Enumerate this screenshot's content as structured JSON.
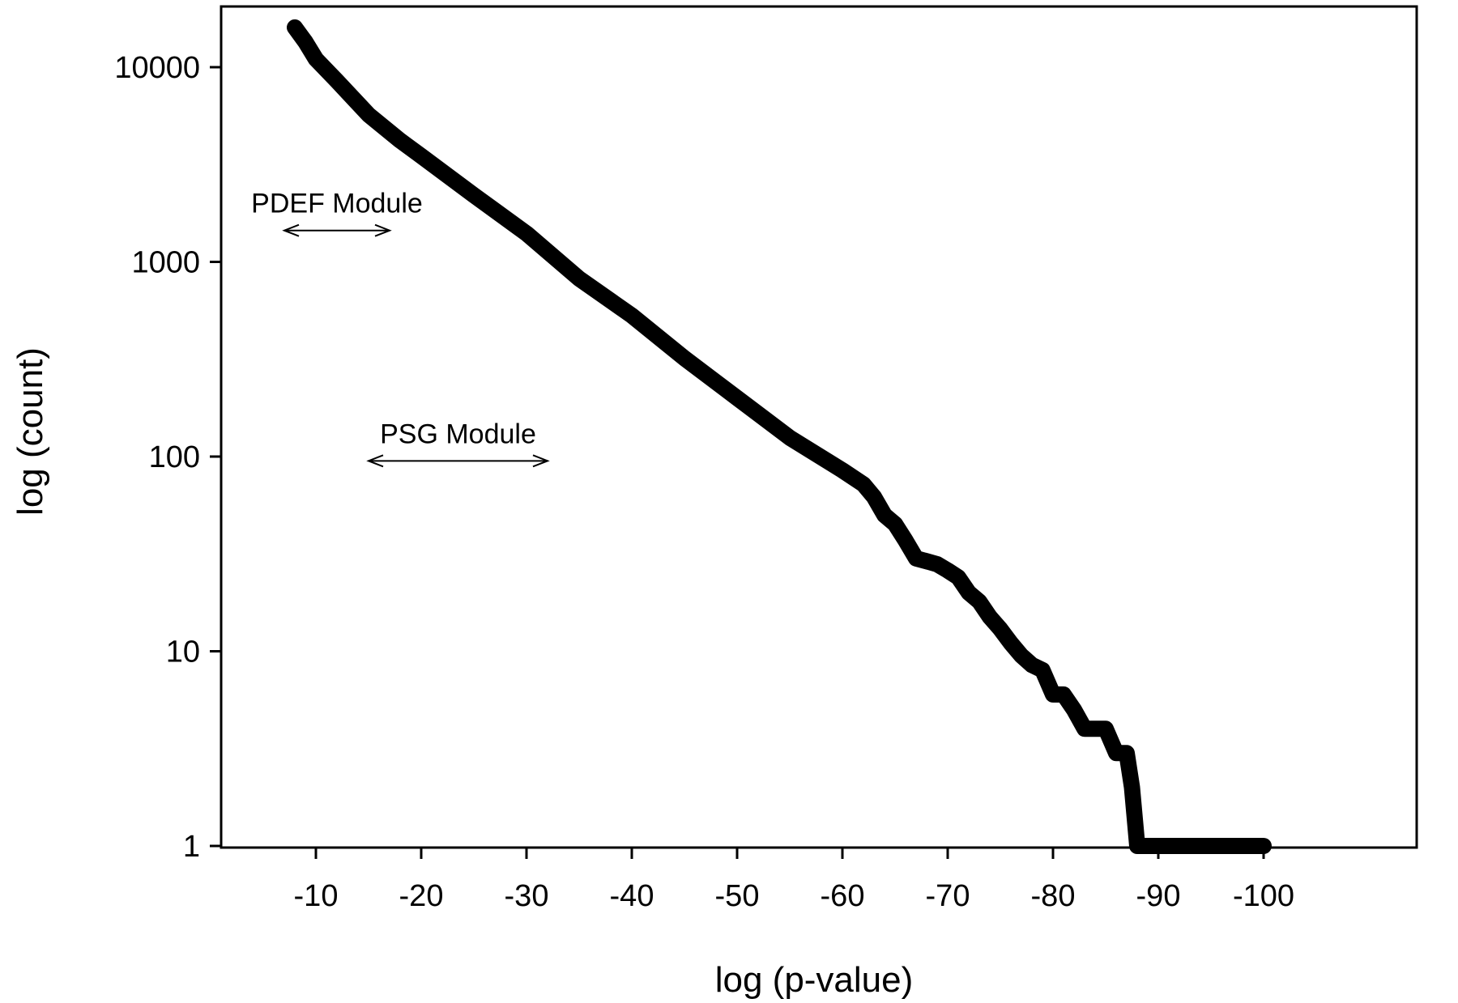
{
  "chart_data": {
    "type": "line",
    "title": "",
    "xlabel": "log (p-value)",
    "ylabel": "log (count)",
    "y_scale": "log",
    "x_direction": "decreasing",
    "xlim": [
      -1,
      -100
    ],
    "ylim": [
      1,
      20000
    ],
    "grid": false,
    "legend": "none",
    "line_color": "#000000",
    "x_ticks": [
      -10,
      -20,
      -30,
      -40,
      -50,
      -60,
      -70,
      -80,
      -90,
      -100
    ],
    "x_tick_labels": [
      "-10",
      "-20",
      "-30",
      "-40",
      "-50",
      "-60",
      "-70",
      "-80",
      "-90",
      "-100"
    ],
    "y_ticks": [
      1,
      10,
      100,
      1000,
      10000
    ],
    "y_tick_labels": [
      "1",
      "10",
      "100",
      "1000",
      "10000"
    ],
    "series": [
      {
        "x": [
          -8,
          -9,
          -10,
          -12,
          -15,
          -18,
          -20,
          -25,
          -30,
          -35,
          -40,
          -45,
          -50,
          -55,
          -60,
          -62,
          -63,
          -64,
          -65,
          -66,
          -67,
          -68,
          -69,
          -70,
          -71,
          -72,
          -73,
          -74,
          -75,
          -76,
          -77,
          -78,
          -79,
          -80,
          -81,
          -82,
          -83,
          -84,
          -85,
          -86,
          -87,
          -87.5,
          -88,
          -90,
          -95,
          -100
        ],
        "y": [
          16000,
          13500,
          11000,
          8500,
          5700,
          4200,
          3500,
          2200,
          1400,
          820,
          530,
          320,
          200,
          125,
          85,
          72,
          62,
          50,
          45,
          37,
          30,
          29,
          28,
          26,
          24,
          20,
          18,
          15,
          13,
          11,
          9.5,
          8.5,
          8,
          6,
          6,
          5,
          4,
          4,
          4,
          3,
          3,
          2,
          1,
          1,
          1,
          1
        ]
      }
    ],
    "annotations": [
      {
        "text": "PDEF Module",
        "arrow_from": -7,
        "arrow_to": -17,
        "y": 1450
      },
      {
        "text": "PSG Module",
        "arrow_from": -15,
        "arrow_to": -32,
        "y": 95
      }
    ]
  }
}
